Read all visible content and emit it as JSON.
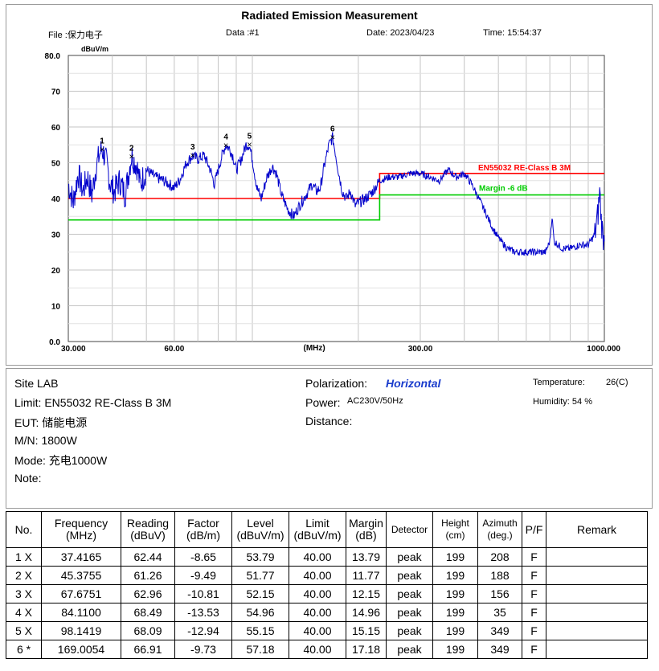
{
  "header": {
    "title": "Radiated Emission Measurement",
    "file": "File :保力电子",
    "data": "Data :#1",
    "date": "Date: 2023/04/23",
    "time": "Time: 15:54:37"
  },
  "chart_data": {
    "type": "line",
    "title": "Radiated Emission Measurement",
    "ylabel": "dBuV/m",
    "xlabel": "(MHz)",
    "xscale": "log",
    "xlim": [
      30,
      1000
    ],
    "ylim": [
      0,
      80
    ],
    "y_ticks": [
      "0.0",
      "10",
      "20",
      "30",
      "40",
      "50",
      "60",
      "70",
      "80.0"
    ],
    "x_tick_labels": [
      {
        "value": 30,
        "label": "30.000"
      },
      {
        "value": 60,
        "label": "60.00"
      },
      {
        "value": 300,
        "label": "300.00"
      },
      {
        "value": 1000,
        "label": "1000.000"
      }
    ],
    "unit_label": "(MHz)",
    "grid": true,
    "limit_lines": [
      {
        "name": "EN55032 RE-Class B 3M",
        "color": "#ff0000",
        "segments": [
          [
            30,
            40
          ],
          [
            230,
            40
          ],
          [
            230,
            47
          ],
          [
            1000,
            47
          ]
        ]
      },
      {
        "name": "Margin -6 dB",
        "color": "#00cc00",
        "segments": [
          [
            30,
            34
          ],
          [
            230,
            34
          ],
          [
            230,
            41
          ],
          [
            1000,
            41
          ]
        ]
      }
    ],
    "series": [
      {
        "name": "Horizontal peak",
        "color": "#0000cc",
        "points": [
          [
            30,
            44
          ],
          [
            31,
            39
          ],
          [
            32,
            47
          ],
          [
            33,
            42
          ],
          [
            34,
            46
          ],
          [
            35,
            41
          ],
          [
            36,
            49
          ],
          [
            37,
            53
          ],
          [
            37.4,
            54
          ],
          [
            38.5,
            50
          ],
          [
            39.5,
            44
          ],
          [
            40.5,
            42
          ],
          [
            42,
            45
          ],
          [
            43.5,
            41
          ],
          [
            45,
            50
          ],
          [
            45.4,
            52
          ],
          [
            47,
            49
          ],
          [
            48,
            44
          ],
          [
            50,
            48
          ],
          [
            53,
            46
          ],
          [
            56,
            45
          ],
          [
            60,
            43
          ],
          [
            62,
            45
          ],
          [
            65,
            50
          ],
          [
            67.7,
            52
          ],
          [
            70,
            51
          ],
          [
            73,
            52
          ],
          [
            76,
            48
          ],
          [
            78,
            44
          ],
          [
            80,
            48
          ],
          [
            82,
            52
          ],
          [
            84,
            55
          ],
          [
            86,
            54
          ],
          [
            88,
            52
          ],
          [
            90,
            48
          ],
          [
            93,
            51
          ],
          [
            96,
            55
          ],
          [
            98,
            55
          ],
          [
            100,
            51
          ],
          [
            103,
            43
          ],
          [
            106,
            40
          ],
          [
            110,
            46
          ],
          [
            114,
            49
          ],
          [
            117,
            47
          ],
          [
            121,
            41
          ],
          [
            126,
            37
          ],
          [
            131,
            35
          ],
          [
            136,
            38
          ],
          [
            142,
            41
          ],
          [
            148,
            44
          ],
          [
            152,
            42
          ],
          [
            156,
            43
          ],
          [
            160,
            49
          ],
          [
            165,
            55
          ],
          [
            169,
            57
          ],
          [
            172,
            53
          ],
          [
            176,
            47
          ],
          [
            180,
            42
          ],
          [
            185,
            40
          ],
          [
            190,
            42
          ],
          [
            196,
            38
          ],
          [
            202,
            39
          ],
          [
            210,
            40
          ],
          [
            220,
            42
          ],
          [
            230,
            45
          ],
          [
            245,
            46
          ],
          [
            260,
            46
          ],
          [
            280,
            47
          ],
          [
            300,
            47
          ],
          [
            320,
            46
          ],
          [
            340,
            45
          ],
          [
            360,
            48
          ],
          [
            380,
            46
          ],
          [
            400,
            47
          ],
          [
            420,
            44
          ],
          [
            440,
            40
          ],
          [
            460,
            36
          ],
          [
            480,
            32
          ],
          [
            500,
            29
          ],
          [
            530,
            26
          ],
          [
            560,
            25
          ],
          [
            600,
            25
          ],
          [
            640,
            25
          ],
          [
            680,
            25
          ],
          [
            700,
            28
          ],
          [
            710,
            35
          ],
          [
            720,
            28
          ],
          [
            760,
            26
          ],
          [
            800,
            26
          ],
          [
            850,
            27
          ],
          [
            900,
            27
          ],
          [
            940,
            30
          ],
          [
            960,
            36
          ],
          [
            970,
            42
          ],
          [
            980,
            34
          ],
          [
            990,
            30
          ],
          [
            1000,
            28
          ]
        ]
      }
    ],
    "markers": [
      {
        "label": "1",
        "freq": 37.4165,
        "level": 53.79
      },
      {
        "label": "2",
        "freq": 45.3755,
        "level": 51.77
      },
      {
        "label": "3",
        "freq": 67.6751,
        "level": 52.15
      },
      {
        "label": "4",
        "freq": 84.11,
        "level": 54.96
      },
      {
        "label": "5",
        "freq": 98.1419,
        "level": 55.15
      },
      {
        "label": "6",
        "freq": 169.0054,
        "level": 57.18
      }
    ]
  },
  "info": {
    "site": "Site  LAB",
    "limit": "Limit:  EN55032 RE-Class B 3M",
    "eut": "EUT:  储能电源",
    "mn": "M/N:  1800W",
    "mode": "Mode:  充电1000W",
    "note": "Note:",
    "polarization_label": "Polarization:",
    "polarization_value": "Horizontal",
    "power_label": "Power:",
    "power_value": "AC230V/50Hz",
    "distance": "Distance:",
    "temperature_label": "Temperature:",
    "temperature_value": "26(C)",
    "humidity": "Humidity:  54 %"
  },
  "table": {
    "headers": [
      "No.",
      "Frequency\n(MHz)",
      "Reading\n(dBuV)",
      "Factor\n(dB/m)",
      "Level\n(dBuV/m)",
      "Limit\n(dBuV/m)",
      "Margin\n(dB)",
      "Detector",
      "Height\n(cm)",
      "Azimuth\n(deg.)",
      "P/F",
      "Remark"
    ],
    "rows": [
      [
        "1  X",
        "37.4165",
        "62.44",
        "-8.65",
        "53.79",
        "40.00",
        "13.79",
        "peak",
        "199",
        "208",
        "F",
        ""
      ],
      [
        "2  X",
        "45.3755",
        "61.26",
        "-9.49",
        "51.77",
        "40.00",
        "11.77",
        "peak",
        "199",
        "188",
        "F",
        ""
      ],
      [
        "3  X",
        "67.6751",
        "62.96",
        "-10.81",
        "52.15",
        "40.00",
        "12.15",
        "peak",
        "199",
        "156",
        "F",
        ""
      ],
      [
        "4  X",
        "84.1100",
        "68.49",
        "-13.53",
        "54.96",
        "40.00",
        "14.96",
        "peak",
        "199",
        "35",
        "F",
        ""
      ],
      [
        "5  X",
        "98.1419",
        "68.09",
        "-12.94",
        "55.15",
        "40.00",
        "15.15",
        "peak",
        "199",
        "349",
        "F",
        ""
      ],
      [
        "6  *",
        "169.0054",
        "66.91",
        "-9.73",
        "57.18",
        "40.00",
        "17.18",
        "peak",
        "199",
        "349",
        "F",
        ""
      ]
    ]
  }
}
